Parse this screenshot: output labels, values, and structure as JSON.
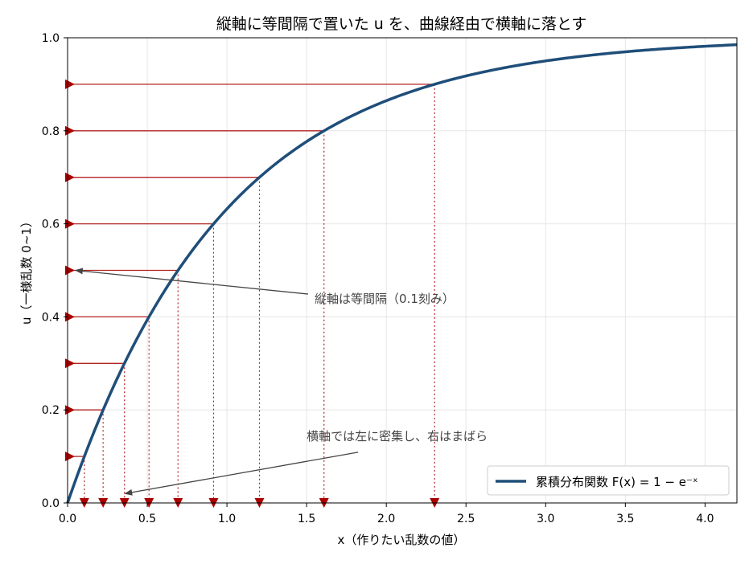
{
  "chart_data": {
    "type": "line",
    "title": "縦軸に等間隔で置いた u を、曲線経由で横軸に落とす",
    "xlabel": "x（作りたい乱数の値）",
    "ylabel": "u（一様乱数 0~1）",
    "xlim": [
      0,
      4.2
    ],
    "ylim": [
      0,
      1
    ],
    "x_ticks": [
      0,
      0.5,
      1,
      1.5,
      2,
      2.5,
      3,
      3.5,
      4
    ],
    "x_tick_labels": [
      "0.0",
      "0.5",
      "1.0",
      "1.5",
      "2.0",
      "2.5",
      "3.0",
      "3.5",
      "4.0"
    ],
    "y_ticks": [
      0,
      0.2,
      0.4,
      0.6,
      0.8,
      1.0
    ],
    "y_tick_labels": [
      "0.0",
      "0.2",
      "0.4",
      "0.6",
      "0.8",
      "1.0"
    ],
    "grid": true,
    "series": [
      {
        "name": "累積分布関数 F(x) = 1 − e⁻ˣ",
        "function": "1 - exp(-x)",
        "color": "#1f4e79"
      }
    ],
    "mapped_points": {
      "u": [
        0.1,
        0.2,
        0.3,
        0.4,
        0.5,
        0.6,
        0.7,
        0.8,
        0.9
      ],
      "x": [
        0.105,
        0.223,
        0.357,
        0.511,
        0.693,
        0.916,
        1.204,
        1.609,
        2.303
      ],
      "color": "#b22222"
    },
    "annotations": [
      {
        "text": "縦軸は等間隔（0.1刻み）",
        "arrow_to": {
          "x": 0.05,
          "y": 0.5
        },
        "text_at": {
          "x": 1.55,
          "y": 0.43
        }
      },
      {
        "text": "横軸では左に密集し、右はまばら",
        "arrow_to": {
          "x": 0.36,
          "y": 0.02
        },
        "text_at": {
          "x": 1.5,
          "y": 0.135
        }
      }
    ],
    "legend": {
      "position": "bottom-right"
    }
  }
}
